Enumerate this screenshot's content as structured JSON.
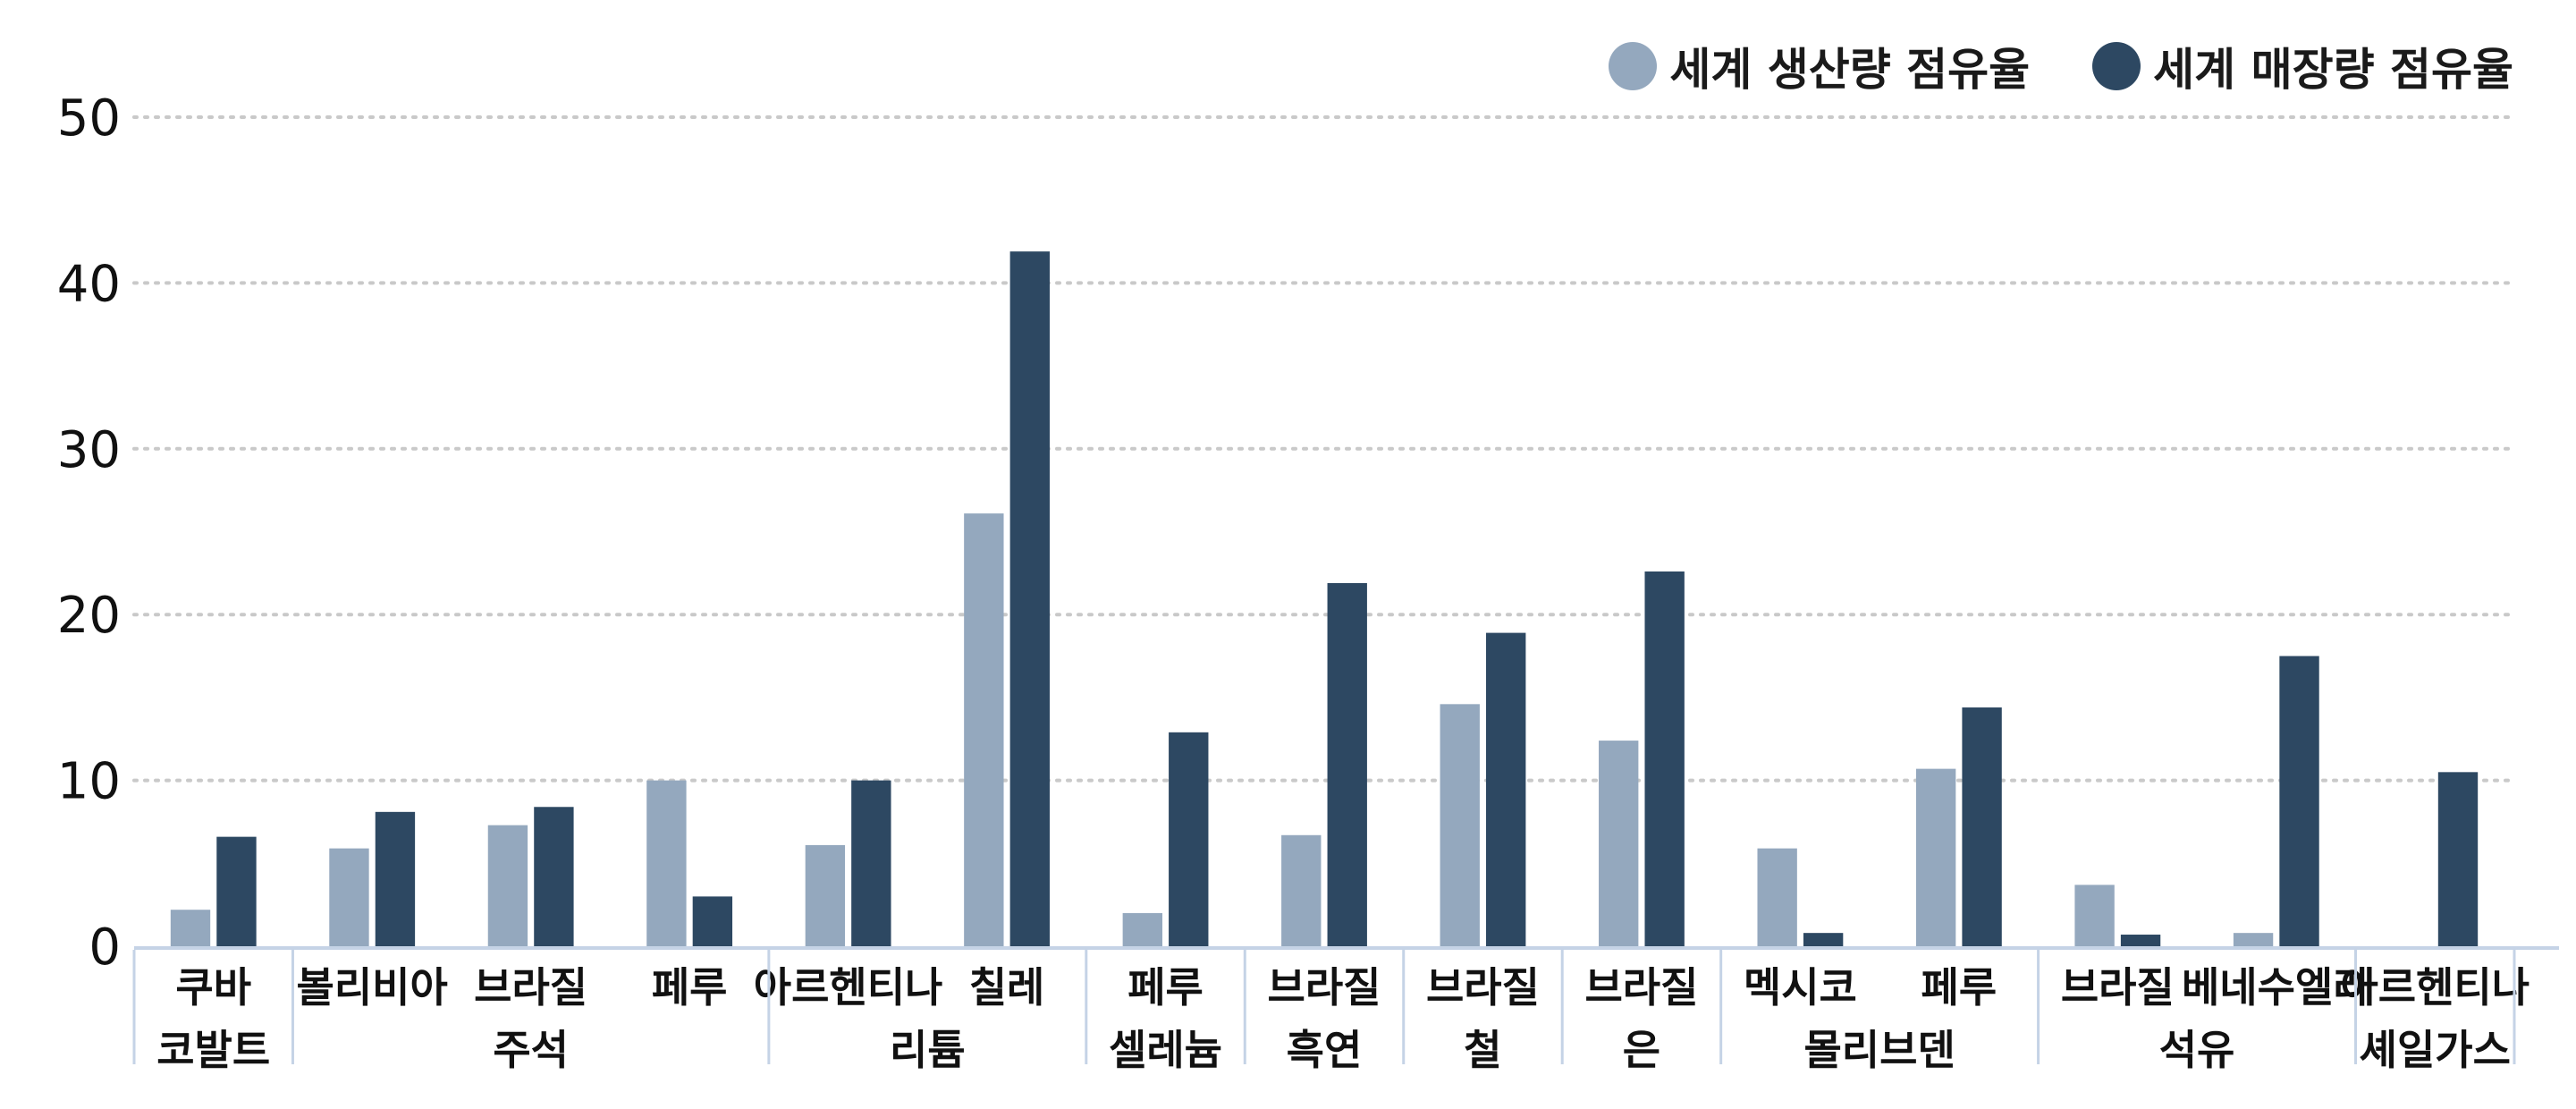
{
  "chart_data": {
    "type": "bar",
    "title": "",
    "xlabel": "",
    "ylabel": "",
    "ylim": [
      0,
      50
    ],
    "y_ticks": [
      0,
      10,
      20,
      30,
      40,
      50
    ],
    "grid": "horizontal dotted",
    "legend_position": "top-right",
    "series": [
      {
        "name": "세계 생산량 점유율",
        "color": "#94a8be"
      },
      {
        "name": "세계 매장량 점유율",
        "color": "#2d4862"
      }
    ],
    "groups": [
      {
        "label": [
          "코발트"
        ],
        "items": [
          {
            "label": [
              "쿠바"
            ],
            "values": [
              2.2,
              6.6
            ]
          }
        ]
      },
      {
        "label": [
          "주석"
        ],
        "items": [
          {
            "label": [
              "볼리비아"
            ],
            "values": [
              5.9,
              8.1
            ]
          },
          {
            "label": [
              "브라질"
            ],
            "values": [
              7.3,
              8.4
            ]
          },
          {
            "label": [
              "페루"
            ],
            "values": [
              10.0,
              3.0
            ]
          }
        ]
      },
      {
        "label": [
          "리튬"
        ],
        "items": [
          {
            "label": [
              "아르헨티나"
            ],
            "values": [
              6.1,
              10.0
            ]
          },
          {
            "label": [
              "칠레"
            ],
            "values": [
              26.1,
              41.9
            ]
          }
        ]
      },
      {
        "label": [
          "셀레늄"
        ],
        "items": [
          {
            "label": [
              "페루"
            ],
            "values": [
              2.0,
              12.9
            ]
          }
        ]
      },
      {
        "label": [
          "흑연"
        ],
        "items": [
          {
            "label": [
              "브라질"
            ],
            "values": [
              6.7,
              21.9
            ]
          }
        ]
      },
      {
        "label": [
          "철"
        ],
        "items": [
          {
            "label": [
              "브라질"
            ],
            "values": [
              14.6,
              18.9
            ]
          }
        ]
      },
      {
        "label": [
          "은"
        ],
        "items": [
          {
            "label": [
              "브라질"
            ],
            "values": [
              12.4,
              22.6
            ]
          }
        ]
      },
      {
        "label": [
          "몰리브덴"
        ],
        "items": [
          {
            "label": [
              "멕시코"
            ],
            "values": [
              5.9,
              0.8
            ]
          },
          {
            "label": [
              "페루"
            ],
            "values": [
              10.7,
              14.4
            ]
          }
        ]
      },
      {
        "label": [
          "석유"
        ],
        "items": [
          {
            "label": [
              "브라질"
            ],
            "values": [
              3.7,
              0.7
            ]
          },
          {
            "label": [
              "베네수엘라"
            ],
            "values": [
              0.8,
              17.5
            ]
          }
        ]
      },
      {
        "label": [
          "셰일가스"
        ],
        "items": [
          {
            "label": [
              "아르헨티나"
            ],
            "values": [
              null,
              10.5
            ]
          }
        ]
      }
    ]
  }
}
